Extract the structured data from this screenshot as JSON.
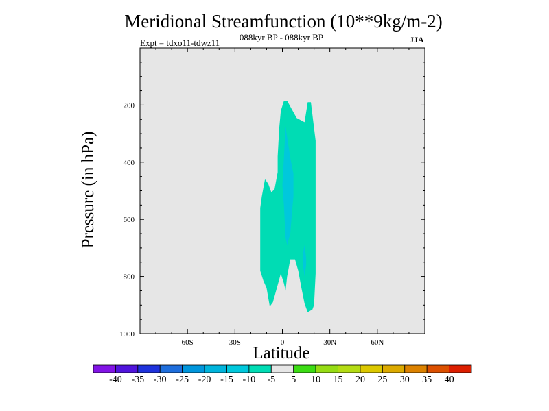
{
  "chart_data": {
    "type": "heatmap",
    "title": "Meridional Streamfunction (10**9kg/m-2)",
    "subtitle": "088kyr BP - 088kyr BP",
    "expt_label": "Expt = tdxo11-tdwz11",
    "season": "JJA",
    "xlabel": "Latitude",
    "ylabel": "Pressure (in hPa)",
    "xlim": [
      -90,
      90
    ],
    "ylim": [
      1000,
      0
    ],
    "x_ticks": [
      {
        "value": -60,
        "label": "60S"
      },
      {
        "value": -30,
        "label": "30S"
      },
      {
        "value": 0,
        "label": "0"
      },
      {
        "value": 30,
        "label": "30N"
      },
      {
        "value": 60,
        "label": "60N"
      }
    ],
    "y_ticks": [
      {
        "value": 200,
        "label": "200"
      },
      {
        "value": 400,
        "label": "400"
      },
      {
        "value": 600,
        "label": "600"
      },
      {
        "value": 800,
        "label": "800"
      },
      {
        "value": 1000,
        "label": "1000"
      }
    ],
    "background_color": "#e6e6e6",
    "contours": [
      {
        "level": "-10 to -5",
        "color": "#00dcb4",
        "points": [
          [
            1,
            185
          ],
          [
            3,
            185
          ],
          [
            5,
            205
          ],
          [
            9,
            245
          ],
          [
            14,
            260
          ],
          [
            16,
            190
          ],
          [
            18,
            190
          ],
          [
            21,
            325
          ],
          [
            21,
            790
          ],
          [
            20,
            900
          ],
          [
            19,
            915
          ],
          [
            16,
            925
          ],
          [
            14,
            895
          ],
          [
            12,
            840
          ],
          [
            10,
            780
          ],
          [
            8,
            740
          ],
          [
            5,
            740
          ],
          [
            3,
            800
          ],
          [
            2,
            850
          ],
          [
            1,
            825
          ],
          [
            -1,
            790
          ],
          [
            -3,
            830
          ],
          [
            -6,
            890
          ],
          [
            -8,
            905
          ],
          [
            -10,
            840
          ],
          [
            -12,
            815
          ],
          [
            -14,
            780
          ],
          [
            -14,
            560
          ],
          [
            -13,
            520
          ],
          [
            -11,
            460
          ],
          [
            -9,
            475
          ],
          [
            -7,
            505
          ],
          [
            -5,
            495
          ],
          [
            -3,
            435
          ],
          [
            -3,
            380
          ],
          [
            -2,
            280
          ],
          [
            -1,
            220
          ]
        ]
      },
      {
        "level": "-15 to -10",
        "color": "#00c8dc",
        "points": [
          [
            2,
            275
          ],
          [
            5,
            385
          ],
          [
            7,
            440
          ],
          [
            7,
            520
          ],
          [
            6,
            580
          ],
          [
            5,
            650
          ],
          [
            3,
            690
          ],
          [
            2,
            665
          ],
          [
            1,
            555
          ],
          [
            0,
            480
          ],
          [
            1,
            380
          ]
        ]
      },
      {
        "level": "-15 to -10",
        "color": "#00c8dc",
        "points": [
          [
            14,
            690
          ],
          [
            15,
            735
          ],
          [
            15,
            760
          ],
          [
            14,
            800
          ],
          [
            13,
            760
          ],
          [
            13,
            720
          ]
        ]
      }
    ],
    "colorbar": {
      "labels": [
        "-40",
        "-35",
        "-30",
        "-25",
        "-20",
        "-15",
        "-10",
        "-5",
        "5",
        "10",
        "15",
        "20",
        "25",
        "30",
        "35",
        "40"
      ],
      "colors": [
        "#8214e6",
        "#5014dc",
        "#1e32dc",
        "#1e6edc",
        "#0096dc",
        "#00b4dc",
        "#00c8dc",
        "#00dcb4",
        "#e6e6e6",
        "#3cdc14",
        "#96dc14",
        "#b4dc14",
        "#dcc800",
        "#dcaa00",
        "#dc8200",
        "#dc5000",
        "#dc1e00"
      ]
    }
  }
}
